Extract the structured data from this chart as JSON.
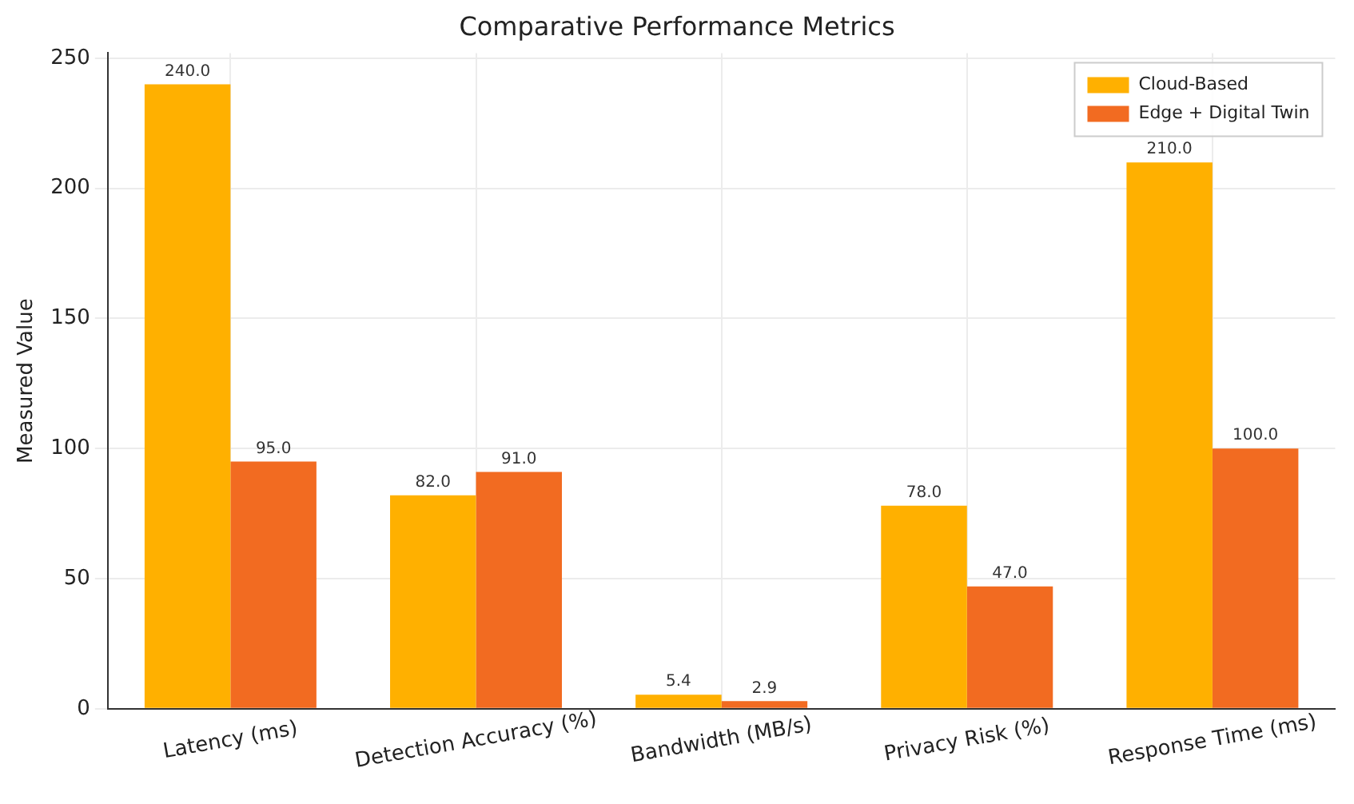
{
  "chart_data": {
    "type": "bar",
    "title": "Comparative Performance Metrics",
    "ylabel": "Measured Value",
    "categories": [
      "Latency (ms)",
      "Detection Accuracy (%)",
      "Bandwidth (MB/s)",
      "Privacy Risk (%)",
      "Response Time (ms)"
    ],
    "series": [
      {
        "name": "Cloud-Based",
        "color": "#ffb000",
        "values": [
          240,
          82,
          5.4,
          78,
          210
        ],
        "value_labels": [
          "240.0",
          "82.0",
          "5.4",
          "78.0",
          "210.0"
        ]
      },
      {
        "name": "Edge + Digital Twin",
        "color": "#f26b21",
        "values": [
          95,
          91,
          2.9,
          47,
          100
        ],
        "value_labels": [
          "95.0",
          "91.0",
          "2.9",
          "47.0",
          "100.0"
        ]
      }
    ],
    "ylim": [
      0,
      252
    ],
    "yticks": [
      0,
      50,
      100,
      150,
      200,
      250
    ],
    "grid": true,
    "legend": "top right"
  }
}
